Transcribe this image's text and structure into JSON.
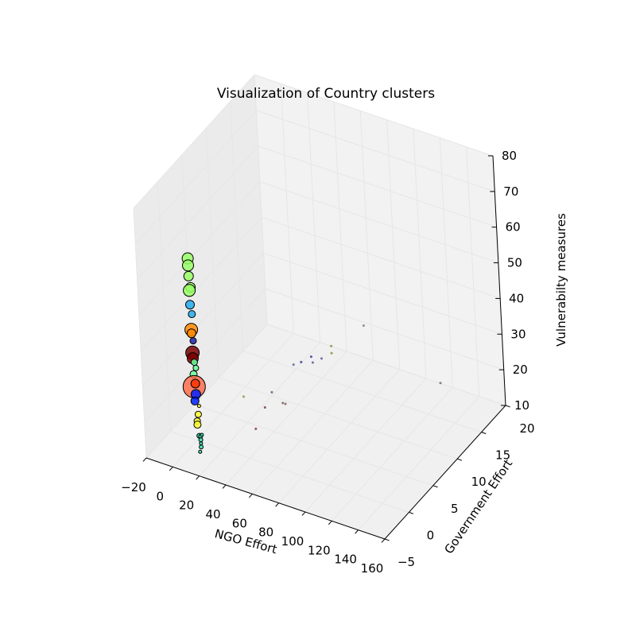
{
  "chart_data": {
    "type": "scatter3d",
    "title": "Visualization of Country clusters",
    "xlabel": "NGO Effort",
    "ylabel": "Government Effort",
    "zlabel": "Vulnerabilty measures",
    "xlim": [
      -20,
      160
    ],
    "ylim": [
      -5,
      20
    ],
    "zlim": [
      10,
      80
    ],
    "xticks": [
      "−20",
      "0",
      "20",
      "40",
      "60",
      "80",
      "100",
      "120",
      "140",
      "160"
    ],
    "yticks": [
      "−5",
      "0",
      "5",
      "10",
      "15",
      "20"
    ],
    "zticks": [
      "10",
      "20",
      "30",
      "40",
      "50",
      "60",
      "70",
      "80"
    ],
    "grid": true,
    "points": [
      {
        "x": 0,
        "y": 0,
        "z": 61,
        "size": 14,
        "color": "#99ff66"
      },
      {
        "x": 0,
        "y": 0,
        "z": 59,
        "size": 14,
        "color": "#99ff66"
      },
      {
        "x": 0,
        "y": 0,
        "z": 56,
        "size": 12,
        "color": "#99ff66"
      },
      {
        "x": 1,
        "y": 0,
        "z": 53,
        "size": 12,
        "color": "#99ff66"
      },
      {
        "x": 0,
        "y": 0,
        "z": 52,
        "size": 15,
        "color": "#99ff66"
      },
      {
        "x": 0,
        "y": 0,
        "z": 48,
        "size": 11,
        "color": "#22aaee"
      },
      {
        "x": 1,
        "y": 0,
        "z": 45.5,
        "size": 9,
        "color": "#22aaee"
      },
      {
        "x": 0,
        "y": 0,
        "z": 41,
        "size": 16,
        "color": "#ff8800"
      },
      {
        "x": 0,
        "y": 0,
        "z": 40,
        "size": 11,
        "color": "#ff8800"
      },
      {
        "x": 1,
        "y": 0,
        "z": 38,
        "size": 8,
        "color": "#2222aa"
      },
      {
        "x": 0,
        "y": 0,
        "z": 34.5,
        "size": 17,
        "color": "#7a0000"
      },
      {
        "x": 0,
        "y": 0,
        "z": 33,
        "size": 14,
        "color": "#7a0000"
      },
      {
        "x": 1,
        "y": 0,
        "z": 32,
        "size": 8,
        "color": "#66ff99"
      },
      {
        "x": 2,
        "y": 0,
        "z": 30.5,
        "size": 7,
        "color": "#66ff99"
      },
      {
        "x": 0,
        "y": 0,
        "z": 28.5,
        "size": 9,
        "color": "#66ff99"
      },
      {
        "x": 0,
        "y": 0,
        "z": 25,
        "size": 28,
        "color": "#ff6644"
      },
      {
        "x": 1,
        "y": 0,
        "z": 26,
        "size": 11,
        "color": "#ff3300"
      },
      {
        "x": 1,
        "y": 0,
        "z": 23,
        "size": 12,
        "color": "#0022ff"
      },
      {
        "x": 0,
        "y": 0,
        "z": 21,
        "size": 10,
        "color": "#0022ff"
      },
      {
        "x": 3,
        "y": 0,
        "z": 20,
        "size": 4,
        "color": "#ffff33"
      },
      {
        "x": 2,
        "y": 0,
        "z": 17.5,
        "size": 8,
        "color": "#ffff33"
      },
      {
        "x": 1,
        "y": 0,
        "z": 15.5,
        "size": 8,
        "color": "#ffff33"
      },
      {
        "x": 1,
        "y": 0,
        "z": 14.5,
        "size": 9,
        "color": "#ffff33"
      },
      {
        "x": 2,
        "y": 0,
        "z": 11.5,
        "size": 6,
        "color": "#33ddaa"
      },
      {
        "x": 3,
        "y": 0,
        "z": 11.5,
        "size": 5,
        "color": "#33ddaa"
      },
      {
        "x": 4,
        "y": 0,
        "z": 12,
        "size": 4,
        "color": "#33ddaa"
      },
      {
        "x": 3,
        "y": 0,
        "z": 10.5,
        "size": 5,
        "color": "#33ddaa"
      },
      {
        "x": 3,
        "y": 0,
        "z": 9.5,
        "size": 4,
        "color": "#33ddaa"
      },
      {
        "x": 3,
        "y": 0,
        "z": 8.5,
        "size": 5,
        "color": "#33ddaa"
      },
      {
        "x": 2,
        "y": 0,
        "z": 7,
        "size": 4,
        "color": "#33ddaa"
      },
      {
        "x": 18,
        "y": 5,
        "z": 17,
        "size": 2,
        "color": "#999944"
      },
      {
        "x": 28,
        "y": 8,
        "z": 15,
        "size": 2,
        "color": "#666699"
      },
      {
        "x": 34,
        "y": 11,
        "z": 19,
        "size": 2,
        "color": "#666699"
      },
      {
        "x": 36,
        "y": 12,
        "z": 18.5,
        "size": 2,
        "color": "#444499"
      },
      {
        "x": 40,
        "y": 13,
        "z": 19,
        "size": 2,
        "color": "#444499"
      },
      {
        "x": 41,
        "y": 13,
        "z": 17.5,
        "size": 2,
        "color": "#666699"
      },
      {
        "x": 44,
        "y": 14,
        "z": 17.5,
        "size": 2,
        "color": "#666699"
      },
      {
        "x": 30,
        "y": 6,
        "z": 14,
        "size": 2,
        "color": "#884444"
      },
      {
        "x": 36,
        "y": 8,
        "z": 13,
        "size": 2,
        "color": "#886666"
      },
      {
        "x": 38,
        "y": 8,
        "z": 13,
        "size": 2,
        "color": "#886666"
      },
      {
        "x": 30,
        "y": 4,
        "z": 11,
        "size": 2,
        "color": "#884444"
      },
      {
        "x": 48,
        "y": 15,
        "z": 20,
        "size": 2,
        "color": "#889944"
      },
      {
        "x": 48,
        "y": 15,
        "z": 18,
        "size": 2,
        "color": "#889944"
      },
      {
        "x": 58,
        "y": 19,
        "z": 21,
        "size": 2,
        "color": "#888888"
      },
      {
        "x": 150,
        "y": 10,
        "z": 30,
        "size": 2,
        "color": "#777777"
      }
    ]
  }
}
